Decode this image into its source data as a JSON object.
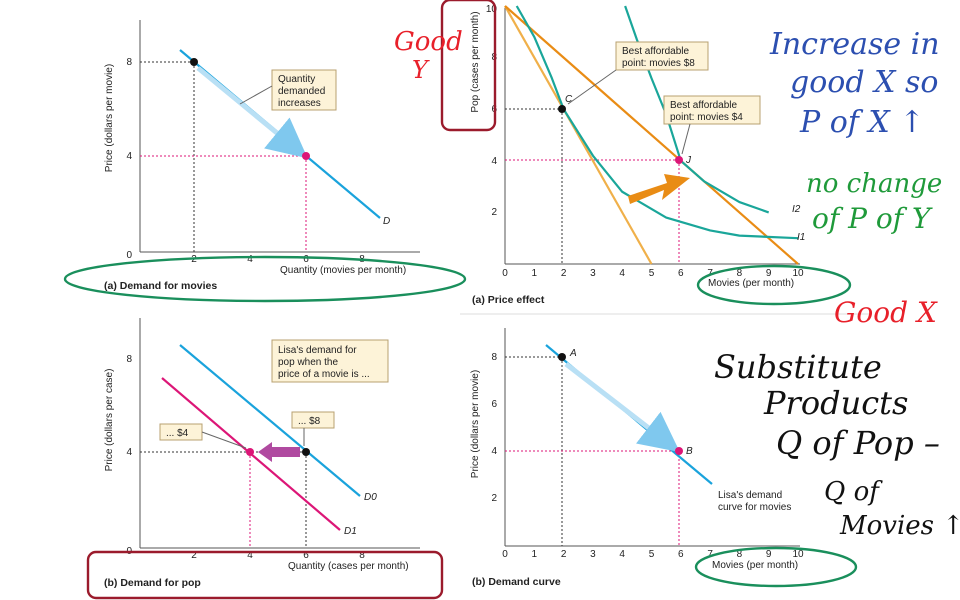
{
  "colors": {
    "blue": "#1aa3dc",
    "magenta": "#dc1677",
    "teal": "#1aa69a",
    "orange": "#e98c15",
    "light_orange": "#f0b04a",
    "black": "#111111",
    "box_fill": "#fdf3d8",
    "box_stroke": "#b8a070",
    "ink_red": "#e8202a",
    "ink_blue": "#2c4fb0",
    "ink_green": "#1f9a3a",
    "ink_black": "#111111",
    "ellipse_green": "#1a8f5c",
    "rect_maroon": "#9b1b2c"
  },
  "chart_data": [
    {
      "id": "demand_movies",
      "type": "line",
      "caption": "(a) Demand for movies",
      "ylabel": "Price (dollars per movie)",
      "xlabel": "Quantity (movies per month)",
      "xlim": [
        0,
        10
      ],
      "ylim": [
        0,
        10
      ],
      "xticks": [
        "0",
        "2",
        "4",
        "6",
        "8"
      ],
      "yticks": [
        "4",
        "8"
      ],
      "series": [
        {
          "name": "D",
          "points": [
            [
              1.5,
              8.5
            ],
            [
              8.5,
              1.5
            ]
          ]
        }
      ],
      "markers": [
        {
          "x": 2,
          "y": 8
        },
        {
          "x": 6,
          "y": 4
        }
      ],
      "annotation": [
        "Quantity",
        "demanded",
        "increases"
      ]
    },
    {
      "id": "demand_pop",
      "type": "line",
      "caption": "(b) Demand for pop",
      "ylabel": "Price (dollars per case)",
      "xlabel": "Quantity (cases per month)",
      "xlim": [
        0,
        10
      ],
      "ylim": [
        0,
        10
      ],
      "xticks": [
        "0",
        "2",
        "4",
        "6",
        "8"
      ],
      "yticks": [
        "4",
        "8"
      ],
      "series": [
        {
          "name": "D0",
          "points": [
            [
              1.5,
              8.5
            ],
            [
              8.2,
              1.8
            ]
          ]
        },
        {
          "name": "D1",
          "points": [
            [
              0.5,
              7.5
            ],
            [
              7.2,
              0.8
            ]
          ]
        }
      ],
      "markers": [
        {
          "x": 6,
          "y": 4
        },
        {
          "x": 4,
          "y": 4
        }
      ],
      "annotation": [
        "Lisa's demand for",
        "pop when the",
        "price of a movie is ..."
      ],
      "labels": [
        "... $8",
        "... $4"
      ]
    },
    {
      "id": "price_effect",
      "type": "line",
      "caption": "(a) Price effect",
      "ylabel": "Pop (cases per month)",
      "xlabel": "Movies (per month)",
      "xlim": [
        0,
        10
      ],
      "ylim": [
        0,
        10
      ],
      "xticks": [
        "0",
        "1",
        "2",
        "3",
        "4",
        "5",
        "6",
        "7",
        "8",
        "9",
        "10"
      ],
      "yticks": [
        "2",
        "4",
        "6",
        "8",
        "10"
      ],
      "budget_lines": [
        {
          "points": [
            [
              0,
              10
            ],
            [
              5,
              0
            ]
          ]
        },
        {
          "points": [
            [
              0,
              10
            ],
            [
              10,
              0
            ]
          ]
        }
      ],
      "indifference_curves": [
        {
          "name": "I1",
          "points": [
            [
              0.4,
              10
            ],
            [
              1,
              8.8
            ],
            [
              1.6,
              7.2
            ],
            [
              2,
              6
            ],
            [
              3,
              4.2
            ],
            [
              4,
              2.8
            ],
            [
              5.5,
              1.8
            ],
            [
              7,
              1.3
            ],
            [
              8,
              1.1
            ],
            [
              10,
              1
            ]
          ]
        },
        {
          "name": "I2",
          "points": [
            [
              4.1,
              10
            ],
            [
              4.5,
              8.7
            ],
            [
              5,
              7.2
            ],
            [
              5.5,
              5.8
            ],
            [
              6,
              4
            ],
            [
              6.8,
              3.2
            ],
            [
              8,
              2.4
            ],
            [
              9,
              2
            ]
          ]
        }
      ],
      "points": [
        {
          "label": "C",
          "x": 2,
          "y": 6
        },
        {
          "label": "J",
          "x": 6,
          "y": 4
        }
      ],
      "annotations": [
        {
          "lines": [
            "Best affordable",
            "point: movies $8"
          ]
        },
        {
          "lines": [
            "Best affordable",
            "point: movies $4"
          ]
        }
      ]
    },
    {
      "id": "demand_curve",
      "type": "line",
      "caption": "(b) Demand curve",
      "ylabel": "Price (dollars per movie)",
      "xlabel": "Movies (per month)",
      "xlim": [
        0,
        10
      ],
      "ylim": [
        0,
        10
      ],
      "xticks": [
        "0",
        "1",
        "2",
        "3",
        "4",
        "5",
        "6",
        "7",
        "8",
        "9",
        "10"
      ],
      "yticks": [
        "2",
        "4",
        "6",
        "8"
      ],
      "series": [
        {
          "name": "Lisa's demand curve for movies",
          "points": [
            [
              1.5,
              8.5
            ],
            [
              7.5,
              2.5
            ]
          ]
        }
      ],
      "points": [
        {
          "label": "A",
          "x": 2,
          "y": 8
        },
        {
          "label": "B",
          "x": 6,
          "y": 4
        }
      ],
      "annotation": [
        "Lisa's demand",
        "curve for movies"
      ]
    }
  ],
  "handwriting": {
    "good_y": [
      "Good",
      "Y"
    ],
    "increase": [
      "Increase in",
      "good X so",
      "P of X ↑"
    ],
    "no_change": [
      "no change",
      "of P of Y"
    ],
    "good_x": "Good X",
    "substitute": [
      "Substitute",
      "Products",
      "Q of Pop –"
    ],
    "q_of_movies": [
      "Q of",
      "Movies ↑"
    ]
  }
}
